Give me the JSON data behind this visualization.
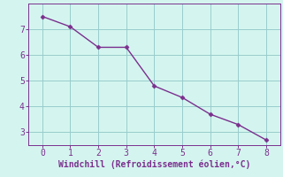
{
  "x": [
    0,
    1,
    2,
    3,
    4,
    5,
    6,
    7,
    8
  ],
  "y": [
    7.5,
    7.1,
    6.3,
    6.3,
    4.8,
    4.35,
    3.7,
    3.3,
    2.7
  ],
  "line_color": "#7b2f8e",
  "marker": "D",
  "marker_size": 2.5,
  "line_width": 1.0,
  "xlabel": "Windchill (Refroidissement éolien,°C)",
  "xlabel_color": "#7b2f8e",
  "xlabel_fontsize": 7,
  "background_color": "#d4f5ef",
  "grid_color": "#99cccc",
  "tick_label_color": "#7b2f8e",
  "xlim": [
    -0.5,
    8.5
  ],
  "ylim": [
    2.5,
    8.0
  ],
  "xticks": [
    0,
    1,
    2,
    3,
    4,
    5,
    6,
    7,
    8
  ],
  "yticks": [
    3,
    4,
    5,
    6,
    7
  ],
  "tick_fontsize": 7,
  "spine_color": "#7b2f8e"
}
